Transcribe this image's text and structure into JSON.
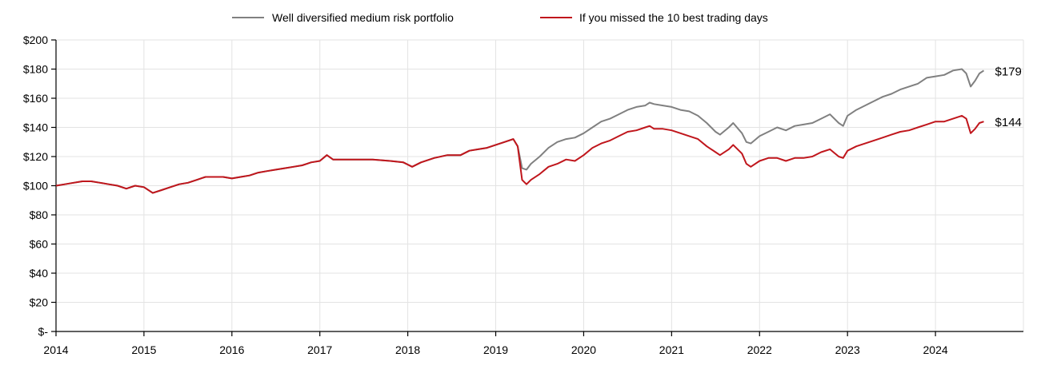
{
  "chart_data": {
    "type": "line",
    "title": "",
    "xlabel": "",
    "ylabel": "",
    "x_ticks": [
      "2014",
      "2015",
      "2016",
      "2017",
      "2018",
      "2019",
      "2020",
      "2021",
      "2022",
      "2023",
      "2024"
    ],
    "y_ticks": [
      {
        "value": 0,
        "label": "$-"
      },
      {
        "value": 20,
        "label": "$20"
      },
      {
        "value": 40,
        "label": "$40"
      },
      {
        "value": 60,
        "label": "$60"
      },
      {
        "value": 80,
        "label": "$80"
      },
      {
        "value": 100,
        "label": "$100"
      },
      {
        "value": 120,
        "label": "$120"
      },
      {
        "value": 140,
        "label": "$140"
      },
      {
        "value": 160,
        "label": "$160"
      },
      {
        "value": 180,
        "label": "$180"
      },
      {
        "value": 200,
        "label": "$200"
      }
    ],
    "xlim": [
      2014,
      2025
    ],
    "ylim": [
      0,
      200
    ],
    "grid": true,
    "legend_position": "top",
    "series": [
      {
        "name": "Well diversified medium risk portfolio",
        "color": "#808080",
        "end_label": "$179",
        "points": [
          [
            2014.0,
            100
          ],
          [
            2014.1,
            101
          ],
          [
            2014.2,
            102
          ],
          [
            2014.3,
            103
          ],
          [
            2014.4,
            103
          ],
          [
            2014.5,
            102
          ],
          [
            2014.6,
            101
          ],
          [
            2014.7,
            100
          ],
          [
            2014.8,
            98
          ],
          [
            2014.9,
            100
          ],
          [
            2015.0,
            99
          ],
          [
            2015.1,
            95
          ],
          [
            2015.2,
            97
          ],
          [
            2015.3,
            99
          ],
          [
            2015.4,
            101
          ],
          [
            2015.5,
            102
          ],
          [
            2015.6,
            104
          ],
          [
            2015.7,
            106
          ],
          [
            2015.8,
            106
          ],
          [
            2015.9,
            106
          ],
          [
            2016.0,
            105
          ],
          [
            2016.1,
            106
          ],
          [
            2016.2,
            107
          ],
          [
            2016.3,
            109
          ],
          [
            2016.4,
            110
          ],
          [
            2016.5,
            111
          ],
          [
            2016.6,
            112
          ],
          [
            2016.7,
            113
          ],
          [
            2016.8,
            114
          ],
          [
            2016.9,
            116
          ],
          [
            2017.0,
            117
          ],
          [
            2017.08,
            121
          ],
          [
            2017.15,
            118
          ],
          [
            2017.25,
            118
          ],
          [
            2017.4,
            118
          ],
          [
            2017.6,
            118
          ],
          [
            2017.8,
            117
          ],
          [
            2017.95,
            116
          ],
          [
            2018.05,
            113
          ],
          [
            2018.15,
            116
          ],
          [
            2018.3,
            119
          ],
          [
            2018.45,
            121
          ],
          [
            2018.6,
            121
          ],
          [
            2018.7,
            124
          ],
          [
            2018.8,
            125
          ],
          [
            2018.9,
            126
          ],
          [
            2019.0,
            128
          ],
          [
            2019.1,
            130
          ],
          [
            2019.2,
            132
          ],
          [
            2019.25,
            127
          ],
          [
            2019.3,
            112
          ],
          [
            2019.35,
            111
          ],
          [
            2019.4,
            115
          ],
          [
            2019.5,
            120
          ],
          [
            2019.6,
            126
          ],
          [
            2019.7,
            130
          ],
          [
            2019.8,
            132
          ],
          [
            2019.9,
            133
          ],
          [
            2020.0,
            136
          ],
          [
            2020.1,
            140
          ],
          [
            2020.2,
            144
          ],
          [
            2020.3,
            146
          ],
          [
            2020.4,
            149
          ],
          [
            2020.5,
            152
          ],
          [
            2020.6,
            154
          ],
          [
            2020.7,
            155
          ],
          [
            2020.75,
            157
          ],
          [
            2020.8,
            156
          ],
          [
            2020.9,
            155
          ],
          [
            2021.0,
            154
          ],
          [
            2021.1,
            152
          ],
          [
            2021.2,
            151
          ],
          [
            2021.3,
            148
          ],
          [
            2021.4,
            143
          ],
          [
            2021.5,
            137
          ],
          [
            2021.55,
            135
          ],
          [
            2021.65,
            140
          ],
          [
            2021.7,
            143
          ],
          [
            2021.8,
            136
          ],
          [
            2021.85,
            130
          ],
          [
            2021.9,
            129
          ],
          [
            2022.0,
            134
          ],
          [
            2022.1,
            137
          ],
          [
            2022.2,
            140
          ],
          [
            2022.3,
            138
          ],
          [
            2022.4,
            141
          ],
          [
            2022.5,
            142
          ],
          [
            2022.6,
            143
          ],
          [
            2022.7,
            146
          ],
          [
            2022.8,
            149
          ],
          [
            2022.9,
            143
          ],
          [
            2022.95,
            141
          ],
          [
            2023.0,
            148
          ],
          [
            2023.1,
            152
          ],
          [
            2023.2,
            155
          ],
          [
            2023.3,
            158
          ],
          [
            2023.4,
            161
          ],
          [
            2023.5,
            163
          ],
          [
            2023.6,
            166
          ],
          [
            2023.7,
            168
          ],
          [
            2023.8,
            170
          ],
          [
            2023.9,
            174
          ],
          [
            2024.0,
            175
          ],
          [
            2024.1,
            176
          ],
          [
            2024.2,
            179
          ],
          [
            2024.3,
            180
          ],
          [
            2024.35,
            177
          ],
          [
            2024.4,
            168
          ],
          [
            2024.45,
            172
          ],
          [
            2024.5,
            177
          ],
          [
            2024.55,
            179
          ]
        ]
      },
      {
        "name": "If you missed the 10 best trading days",
        "color": "#c0161c",
        "end_label": "$144",
        "points": [
          [
            2014.0,
            100
          ],
          [
            2014.1,
            101
          ],
          [
            2014.2,
            102
          ],
          [
            2014.3,
            103
          ],
          [
            2014.4,
            103
          ],
          [
            2014.5,
            102
          ],
          [
            2014.6,
            101
          ],
          [
            2014.7,
            100
          ],
          [
            2014.8,
            98
          ],
          [
            2014.9,
            100
          ],
          [
            2015.0,
            99
          ],
          [
            2015.1,
            95
          ],
          [
            2015.2,
            97
          ],
          [
            2015.3,
            99
          ],
          [
            2015.4,
            101
          ],
          [
            2015.5,
            102
          ],
          [
            2015.6,
            104
          ],
          [
            2015.7,
            106
          ],
          [
            2015.8,
            106
          ],
          [
            2015.9,
            106
          ],
          [
            2016.0,
            105
          ],
          [
            2016.1,
            106
          ],
          [
            2016.2,
            107
          ],
          [
            2016.3,
            109
          ],
          [
            2016.4,
            110
          ],
          [
            2016.5,
            111
          ],
          [
            2016.6,
            112
          ],
          [
            2016.7,
            113
          ],
          [
            2016.8,
            114
          ],
          [
            2016.9,
            116
          ],
          [
            2017.0,
            117
          ],
          [
            2017.08,
            121
          ],
          [
            2017.15,
            118
          ],
          [
            2017.25,
            118
          ],
          [
            2017.4,
            118
          ],
          [
            2017.6,
            118
          ],
          [
            2017.8,
            117
          ],
          [
            2017.95,
            116
          ],
          [
            2018.05,
            113
          ],
          [
            2018.15,
            116
          ],
          [
            2018.3,
            119
          ],
          [
            2018.45,
            121
          ],
          [
            2018.6,
            121
          ],
          [
            2018.7,
            124
          ],
          [
            2018.8,
            125
          ],
          [
            2018.9,
            126
          ],
          [
            2019.0,
            128
          ],
          [
            2019.1,
            130
          ],
          [
            2019.2,
            132
          ],
          [
            2019.25,
            127
          ],
          [
            2019.3,
            104
          ],
          [
            2019.35,
            101
          ],
          [
            2019.4,
            104
          ],
          [
            2019.5,
            108
          ],
          [
            2019.6,
            113
          ],
          [
            2019.7,
            115
          ],
          [
            2019.8,
            118
          ],
          [
            2019.9,
            117
          ],
          [
            2020.0,
            121
          ],
          [
            2020.1,
            126
          ],
          [
            2020.2,
            129
          ],
          [
            2020.3,
            131
          ],
          [
            2020.4,
            134
          ],
          [
            2020.5,
            137
          ],
          [
            2020.6,
            138
          ],
          [
            2020.7,
            140
          ],
          [
            2020.75,
            141
          ],
          [
            2020.8,
            139
          ],
          [
            2020.9,
            139
          ],
          [
            2021.0,
            138
          ],
          [
            2021.1,
            136
          ],
          [
            2021.2,
            134
          ],
          [
            2021.3,
            132
          ],
          [
            2021.4,
            127
          ],
          [
            2021.5,
            123
          ],
          [
            2021.55,
            121
          ],
          [
            2021.65,
            125
          ],
          [
            2021.7,
            128
          ],
          [
            2021.8,
            122
          ],
          [
            2021.85,
            115
          ],
          [
            2021.9,
            113
          ],
          [
            2022.0,
            117
          ],
          [
            2022.1,
            119
          ],
          [
            2022.2,
            119
          ],
          [
            2022.3,
            117
          ],
          [
            2022.4,
            119
          ],
          [
            2022.5,
            119
          ],
          [
            2022.6,
            120
          ],
          [
            2022.7,
            123
          ],
          [
            2022.8,
            125
          ],
          [
            2022.9,
            120
          ],
          [
            2022.95,
            119
          ],
          [
            2023.0,
            124
          ],
          [
            2023.1,
            127
          ],
          [
            2023.2,
            129
          ],
          [
            2023.3,
            131
          ],
          [
            2023.4,
            133
          ],
          [
            2023.5,
            135
          ],
          [
            2023.6,
            137
          ],
          [
            2023.7,
            138
          ],
          [
            2023.8,
            140
          ],
          [
            2023.9,
            142
          ],
          [
            2024.0,
            144
          ],
          [
            2024.1,
            144
          ],
          [
            2024.2,
            146
          ],
          [
            2024.3,
            148
          ],
          [
            2024.35,
            146
          ],
          [
            2024.4,
            136
          ],
          [
            2024.45,
            139
          ],
          [
            2024.5,
            143
          ],
          [
            2024.55,
            144
          ]
        ]
      }
    ]
  }
}
